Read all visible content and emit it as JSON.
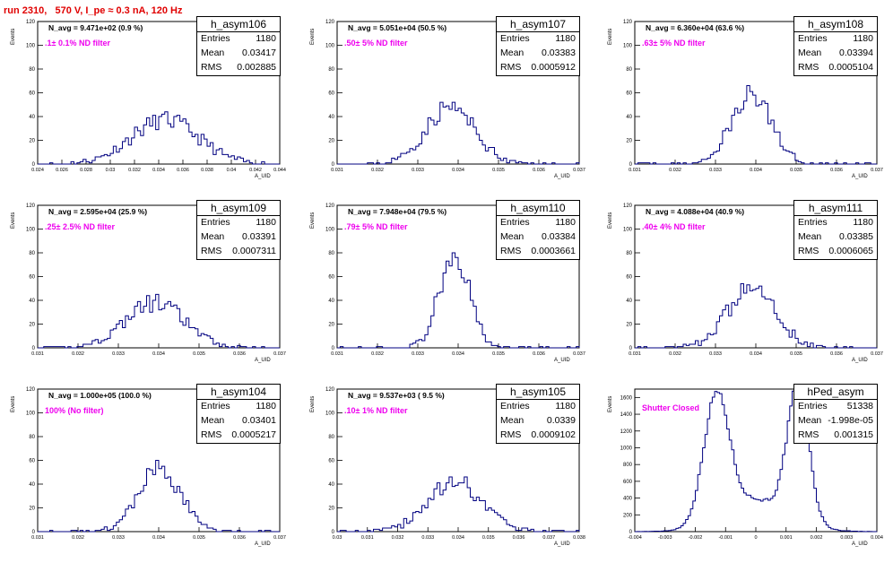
{
  "title": "run 2310,   570 V, I_pe ≈ 0.3 nA, 120 Hz",
  "colors": {
    "title": "#e00000",
    "filter_label": "#ee00ee",
    "histogram": "#000080"
  },
  "chart_data": [
    {
      "type": "bar",
      "name": "h_asym106",
      "navg": "N_avg = 9.471e+02 (0.9 %)",
      "filter": ".1± 0.1% ND filter",
      "stats": {
        "entries": "1180",
        "mean": "0.03417",
        "rms": "0.002885"
      },
      "xlabel": "A_UID",
      "ylabel": "Events",
      "xlim": [
        0.024,
        0.044
      ],
      "ylim": [
        0,
        120
      ],
      "xticks": [
        "0.024",
        "0.026",
        "0.028",
        "0.03",
        "0.032",
        "0.034",
        "0.036",
        "0.038",
        "0.04",
        "0.042",
        "0.044"
      ],
      "yticks": [
        "0",
        "20",
        "40",
        "60",
        "80",
        "100",
        "120"
      ],
      "peak": 0.0345,
      "width": 0.0028,
      "height": 37,
      "bins": 80,
      "seed": 11
    },
    {
      "type": "bar",
      "name": "h_asym107",
      "navg": "N_avg = 5.051e+04 (50.5 %)",
      "filter": ".50± 5% ND filter",
      "stats": {
        "entries": "1180",
        "mean": "0.03383",
        "rms": "0.0005912"
      },
      "xlabel": "A_UID",
      "ylabel": "Events",
      "xlim": [
        0.031,
        0.037
      ],
      "ylim": [
        0,
        120
      ],
      "xticks": [
        "0.031",
        "0.032",
        "0.033",
        "0.034",
        "0.035",
        "0.036",
        "0.037"
      ],
      "yticks": [
        "0",
        "20",
        "40",
        "60",
        "80",
        "100",
        "120"
      ],
      "peak": 0.0338,
      "width": 0.0006,
      "height": 48,
      "bins": 80,
      "seed": 23
    },
    {
      "type": "bar",
      "name": "h_asym108",
      "navg": "N_avg = 6.360e+04 (63.6 %)",
      "filter": ".63± 5% ND filter",
      "stats": {
        "entries": "1180",
        "mean": "0.03394",
        "rms": "0.0005104"
      },
      "xlabel": "A_UID",
      "ylabel": "Events",
      "xlim": [
        0.031,
        0.037
      ],
      "ylim": [
        0,
        120
      ],
      "xticks": [
        "0.031",
        "0.032",
        "0.033",
        "0.034",
        "0.035",
        "0.036",
        "0.037"
      ],
      "yticks": [
        "0",
        "20",
        "40",
        "60",
        "80",
        "100",
        "120"
      ],
      "peak": 0.0339,
      "width": 0.0005,
      "height": 58,
      "bins": 80,
      "seed": 37
    },
    {
      "type": "bar",
      "name": "h_asym109",
      "navg": "N_avg = 2.595e+04 (25.9 %)",
      "filter": ".25± 2.5% ND filter",
      "stats": {
        "entries": "1180",
        "mean": "0.03391",
        "rms": "0.0007311"
      },
      "xlabel": "A_UID",
      "ylabel": "Events",
      "xlim": [
        0.031,
        0.037
      ],
      "ylim": [
        0,
        120
      ],
      "xticks": [
        "0.031",
        "0.032",
        "0.033",
        "0.034",
        "0.035",
        "0.036",
        "0.037"
      ],
      "yticks": [
        "0",
        "20",
        "40",
        "60",
        "80",
        "100",
        "120"
      ],
      "peak": 0.0339,
      "width": 0.00073,
      "height": 38,
      "bins": 80,
      "seed": 41
    },
    {
      "type": "bar",
      "name": "h_asym110",
      "navg": "N_avg = 7.948e+04 (79.5 %)",
      "filter": ".79± 5% ND filter",
      "stats": {
        "entries": "1180",
        "mean": "0.03384",
        "rms": "0.0003661"
      },
      "xlabel": "A_UID",
      "ylabel": "Events",
      "xlim": [
        0.031,
        0.037
      ],
      "ylim": [
        0,
        120
      ],
      "xticks": [
        "0.031",
        "0.032",
        "0.033",
        "0.034",
        "0.035",
        "0.036",
        "0.037"
      ],
      "yticks": [
        "0",
        "20",
        "40",
        "60",
        "80",
        "100",
        "120"
      ],
      "peak": 0.0339,
      "width": 0.00037,
      "height": 80,
      "bins": 80,
      "seed": 53
    },
    {
      "type": "bar",
      "name": "h_asym111",
      "navg": "N_avg = 4.088e+04 (40.9 %)",
      "filter": ".40± 4% ND filter",
      "stats": {
        "entries": "1180",
        "mean": "0.03385",
        "rms": "0.0006065"
      },
      "xlabel": "A_UID",
      "ylabel": "Events",
      "xlim": [
        0.031,
        0.037
      ],
      "ylim": [
        0,
        120
      ],
      "xticks": [
        "0.031",
        "0.032",
        "0.033",
        "0.034",
        "0.035",
        "0.036",
        "0.037"
      ],
      "yticks": [
        "0",
        "20",
        "40",
        "60",
        "80",
        "100",
        "120"
      ],
      "peak": 0.0339,
      "width": 0.0006,
      "height": 50,
      "bins": 80,
      "seed": 67
    },
    {
      "type": "bar",
      "name": "h_asym104",
      "navg": "N_avg = 1.000e+05 (100.0 %)",
      "filter": "100% (No filter)",
      "stats": {
        "entries": "1180",
        "mean": "0.03401",
        "rms": "0.0005217"
      },
      "xlabel": "A_UID",
      "ylabel": "Events",
      "xlim": [
        0.031,
        0.037
      ],
      "ylim": [
        0,
        120
      ],
      "xticks": [
        "0.031",
        "0.032",
        "0.033",
        "0.034",
        "0.035",
        "0.036",
        "0.037"
      ],
      "yticks": [
        "0",
        "20",
        "40",
        "60",
        "80",
        "100",
        "120"
      ],
      "peak": 0.034,
      "width": 0.00052,
      "height": 52,
      "bins": 80,
      "seed": 71
    },
    {
      "type": "bar",
      "name": "h_asym105",
      "navg": "N_avg = 9.537e+03 ( 9.5 %)",
      "filter": ".10± 1% ND filter",
      "stats": {
        "entries": "1180",
        "mean": "0.0339",
        "rms": "0.0009102"
      },
      "xlabel": "A_UID",
      "ylabel": "Events",
      "xlim": [
        0.03,
        0.038
      ],
      "ylim": [
        0,
        120
      ],
      "xticks": [
        "0.03",
        "0.031",
        "0.032",
        "0.033",
        "0.034",
        "0.035",
        "0.036",
        "0.037",
        "0.038"
      ],
      "yticks": [
        "0",
        "20",
        "40",
        "60",
        "80",
        "100",
        "120"
      ],
      "peak": 0.0339,
      "width": 0.0009,
      "height": 42,
      "bins": 80,
      "seed": 83
    },
    {
      "type": "bar",
      "name": "hPed_asym",
      "navg": "",
      "filter": "Shutter Closed",
      "stats": {
        "entries": "51338",
        "mean": "-1.998e-05",
        "rms": "0.001315"
      },
      "xlabel": "A_UID",
      "ylabel": "Events",
      "xlim": [
        -0.004,
        0.004
      ],
      "ylim": [
        0,
        1700
      ],
      "xticks": [
        "-0.004",
        "-0.003",
        "-0.002",
        "-0.001",
        "0",
        "0.001",
        "0.002",
        "0.003",
        "0.004"
      ],
      "yticks": [
        "0",
        "200",
        "400",
        "600",
        "800",
        "1000",
        "1200",
        "1400",
        "1600"
      ],
      "bimodal": true,
      "bins": 100,
      "seed": 97
    }
  ]
}
